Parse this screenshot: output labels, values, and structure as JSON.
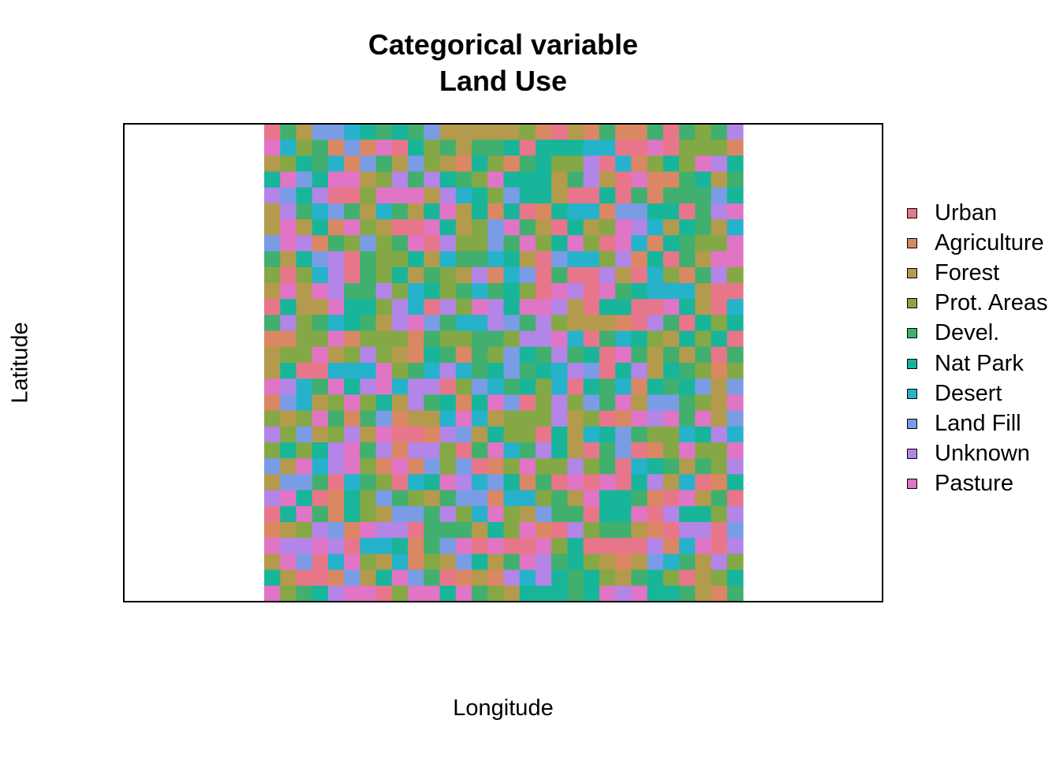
{
  "chart_data": {
    "type": "heatmap",
    "title": [
      "Categorical variable",
      "Land Use"
    ],
    "xlabel": "Longitude",
    "ylabel": "Latitude",
    "legend_position": "right",
    "grid": false,
    "axes_ticks": false,
    "grid_cols": 30,
    "grid_rows": 30,
    "categories": [
      {
        "name": "Urban",
        "color": "#E8768A"
      },
      {
        "name": "Agriculture",
        "color": "#D98863"
      },
      {
        "name": "Forest",
        "color": "#B49A4C"
      },
      {
        "name": "Prot. Areas",
        "color": "#84A846"
      },
      {
        "name": "Devel.",
        "color": "#41B06E"
      },
      {
        "name": "Nat Park",
        "color": "#18B59B"
      },
      {
        "name": "Desert",
        "color": "#27B2CB"
      },
      {
        "name": "Land Fill",
        "color": "#7A9CE5"
      },
      {
        "name": "Unknown",
        "color": "#B385E6"
      },
      {
        "name": "Pasture",
        "color": "#E075C5"
      }
    ],
    "values": [
      [
        1,
        5,
        3,
        8,
        8,
        7,
        6,
        5,
        6,
        5,
        8,
        3,
        3,
        3,
        3,
        3,
        4,
        2,
        1,
        3,
        2,
        5,
        2,
        2,
        5,
        1,
        5,
        4,
        5,
        9
      ],
      [
        10,
        7,
        4,
        5,
        2,
        8,
        2,
        10,
        1,
        6,
        4,
        5,
        3,
        5,
        5,
        6,
        1,
        6,
        6,
        6,
        7,
        7,
        1,
        1,
        10,
        1,
        4,
        4,
        4,
        2
      ],
      [
        3,
        4,
        6,
        5,
        7,
        2,
        8,
        5,
        3,
        8,
        4,
        3,
        2,
        6,
        4,
        2,
        5,
        6,
        4,
        4,
        9,
        1,
        7,
        2,
        4,
        6,
        4,
        10,
        9,
        6
      ],
      [
        6,
        10,
        8,
        6,
        10,
        10,
        3,
        4,
        9,
        5,
        9,
        6,
        5,
        4,
        10,
        6,
        6,
        6,
        3,
        5,
        9,
        3,
        1,
        10,
        2,
        2,
        5,
        6,
        3,
        5
      ],
      [
        9,
        8,
        6,
        9,
        1,
        1,
        4,
        10,
        10,
        10,
        3,
        9,
        7,
        6,
        4,
        8,
        6,
        6,
        3,
        1,
        1,
        6,
        1,
        5,
        2,
        5,
        5,
        5,
        8,
        6
      ],
      [
        3,
        9,
        5,
        7,
        8,
        5,
        3,
        7,
        5,
        3,
        6,
        10,
        3,
        6,
        2,
        6,
        1,
        2,
        6,
        7,
        7,
        2,
        8,
        8,
        6,
        6,
        1,
        5,
        9,
        10
      ],
      [
        3,
        10,
        3,
        6,
        2,
        10,
        4,
        3,
        1,
        1,
        10,
        6,
        3,
        4,
        8,
        10,
        5,
        3,
        1,
        6,
        3,
        4,
        10,
        9,
        7,
        3,
        6,
        5,
        3,
        7
      ],
      [
        8,
        10,
        9,
        2,
        5,
        4,
        8,
        4,
        5,
        10,
        1,
        9,
        4,
        4,
        8,
        5,
        10,
        4,
        6,
        10,
        4,
        1,
        10,
        7,
        2,
        6,
        5,
        4,
        4,
        10
      ],
      [
        5,
        3,
        6,
        8,
        9,
        1,
        5,
        4,
        4,
        6,
        3,
        7,
        5,
        5,
        7,
        6,
        3,
        1,
        8,
        7,
        7,
        4,
        9,
        2,
        6,
        1,
        5,
        3,
        10,
        10
      ],
      [
        4,
        1,
        4,
        7,
        9,
        1,
        5,
        4,
        6,
        3,
        5,
        4,
        3,
        9,
        2,
        7,
        8,
        1,
        5,
        1,
        1,
        9,
        3,
        1,
        7,
        4,
        2,
        5,
        9,
        4
      ],
      [
        3,
        10,
        3,
        10,
        9,
        5,
        5,
        9,
        4,
        7,
        6,
        4,
        5,
        7,
        5,
        6,
        4,
        1,
        10,
        9,
        1,
        10,
        5,
        6,
        7,
        7,
        7,
        3,
        1,
        1
      ],
      [
        1,
        6,
        3,
        3,
        10,
        6,
        6,
        4,
        9,
        7,
        1,
        9,
        4,
        10,
        9,
        6,
        10,
        10,
        9,
        3,
        1,
        6,
        6,
        1,
        1,
        10,
        6,
        3,
        1,
        7
      ],
      [
        5,
        9,
        4,
        5,
        7,
        6,
        5,
        3,
        9,
        10,
        8,
        5,
        7,
        7,
        9,
        8,
        5,
        9,
        4,
        3,
        3,
        3,
        2,
        1,
        9,
        5,
        1,
        6,
        4,
        6
      ],
      [
        2,
        2,
        4,
        4,
        10,
        2,
        4,
        4,
        4,
        2,
        5,
        4,
        4,
        5,
        5,
        4,
        9,
        9,
        10,
        7,
        1,
        5,
        7,
        6,
        4,
        3,
        6,
        4,
        6,
        1
      ],
      [
        3,
        4,
        4,
        10,
        3,
        4,
        9,
        4,
        3,
        2,
        6,
        5,
        2,
        5,
        4,
        8,
        6,
        5,
        9,
        5,
        6,
        1,
        10,
        5,
        3,
        5,
        3,
        5,
        1,
        5
      ],
      [
        3,
        6,
        1,
        1,
        7,
        7,
        7,
        10,
        4,
        5,
        7,
        9,
        7,
        5,
        6,
        8,
        5,
        6,
        7,
        9,
        8,
        1,
        6,
        9,
        3,
        6,
        5,
        4,
        2,
        4
      ],
      [
        10,
        9,
        7,
        5,
        10,
        6,
        9,
        10,
        7,
        9,
        9,
        1,
        4,
        8,
        7,
        5,
        6,
        4,
        7,
        1,
        6,
        5,
        7,
        2,
        6,
        5,
        6,
        8,
        3,
        8
      ],
      [
        2,
        8,
        7,
        3,
        4,
        10,
        4,
        6,
        3,
        9,
        5,
        6,
        2,
        6,
        10,
        8,
        1,
        4,
        9,
        4,
        8,
        5,
        10,
        3,
        8,
        8,
        5,
        4,
        3,
        10
      ],
      [
        4,
        3,
        4,
        10,
        5,
        2,
        5,
        8,
        2,
        3,
        3,
        7,
        10,
        7,
        3,
        4,
        4,
        4,
        9,
        3,
        4,
        1,
        2,
        10,
        9,
        10,
        5,
        10,
        3,
        8
      ],
      [
        9,
        4,
        8,
        3,
        4,
        9,
        3,
        10,
        1,
        1,
        2,
        9,
        8,
        3,
        6,
        4,
        4,
        1,
        6,
        3,
        7,
        6,
        8,
        5,
        4,
        4,
        7,
        6,
        9,
        7
      ],
      [
        4,
        6,
        4,
        6,
        9,
        10,
        5,
        9,
        2,
        9,
        9,
        4,
        1,
        5,
        10,
        7,
        5,
        9,
        6,
        3,
        1,
        5,
        8,
        1,
        2,
        4,
        10,
        4,
        4,
        10
      ],
      [
        8,
        3,
        10,
        7,
        9,
        10,
        4,
        2,
        10,
        2,
        8,
        4,
        8,
        1,
        2,
        4,
        10,
        4,
        4,
        9,
        4,
        5,
        1,
        7,
        6,
        5,
        3,
        5,
        4,
        9
      ],
      [
        3,
        8,
        8,
        5,
        1,
        7,
        5,
        4,
        1,
        7,
        6,
        10,
        9,
        7,
        8,
        6,
        2,
        5,
        1,
        10,
        1,
        10,
        1,
        6,
        9,
        3,
        7,
        1,
        2,
        6
      ],
      [
        9,
        10,
        6,
        1,
        2,
        6,
        4,
        8,
        5,
        4,
        3,
        5,
        8,
        8,
        2,
        7,
        7,
        4,
        5,
        3,
        10,
        6,
        6,
        5,
        2,
        1,
        10,
        3,
        5,
        1
      ],
      [
        1,
        6,
        10,
        5,
        2,
        6,
        4,
        3,
        8,
        8,
        5,
        9,
        4,
        7,
        10,
        4,
        3,
        8,
        5,
        5,
        1,
        6,
        6,
        10,
        1,
        9,
        6,
        6,
        4,
        9
      ],
      [
        2,
        3,
        4,
        9,
        8,
        2,
        10,
        9,
        9,
        1,
        5,
        5,
        5,
        3,
        6,
        4,
        10,
        2,
        1,
        9,
        4,
        5,
        5,
        3,
        2,
        1,
        9,
        9,
        1,
        8
      ],
      [
        10,
        9,
        9,
        10,
        9,
        1,
        7,
        7,
        6,
        2,
        5,
        8,
        10,
        1,
        10,
        1,
        1,
        10,
        4,
        6,
        1,
        1,
        1,
        1,
        9,
        2,
        7,
        10,
        1,
        9
      ],
      [
        3,
        10,
        8,
        1,
        7,
        10,
        4,
        3,
        7,
        2,
        4,
        3,
        8,
        6,
        3,
        5,
        10,
        9,
        5,
        6,
        4,
        3,
        2,
        3,
        8,
        7,
        5,
        3,
        9,
        4
      ],
      [
        6,
        3,
        1,
        1,
        2,
        8,
        3,
        6,
        10,
        8,
        5,
        1,
        2,
        3,
        2,
        9,
        7,
        9,
        6,
        5,
        6,
        4,
        3,
        5,
        6,
        4,
        1,
        3,
        4,
        6
      ],
      [
        10,
        4,
        5,
        6,
        9,
        10,
        10,
        1,
        4,
        10,
        10,
        6,
        10,
        5,
        4,
        3,
        6,
        6,
        6,
        5,
        6,
        10,
        9,
        10,
        6,
        6,
        5,
        3,
        2,
        5
      ]
    ]
  }
}
